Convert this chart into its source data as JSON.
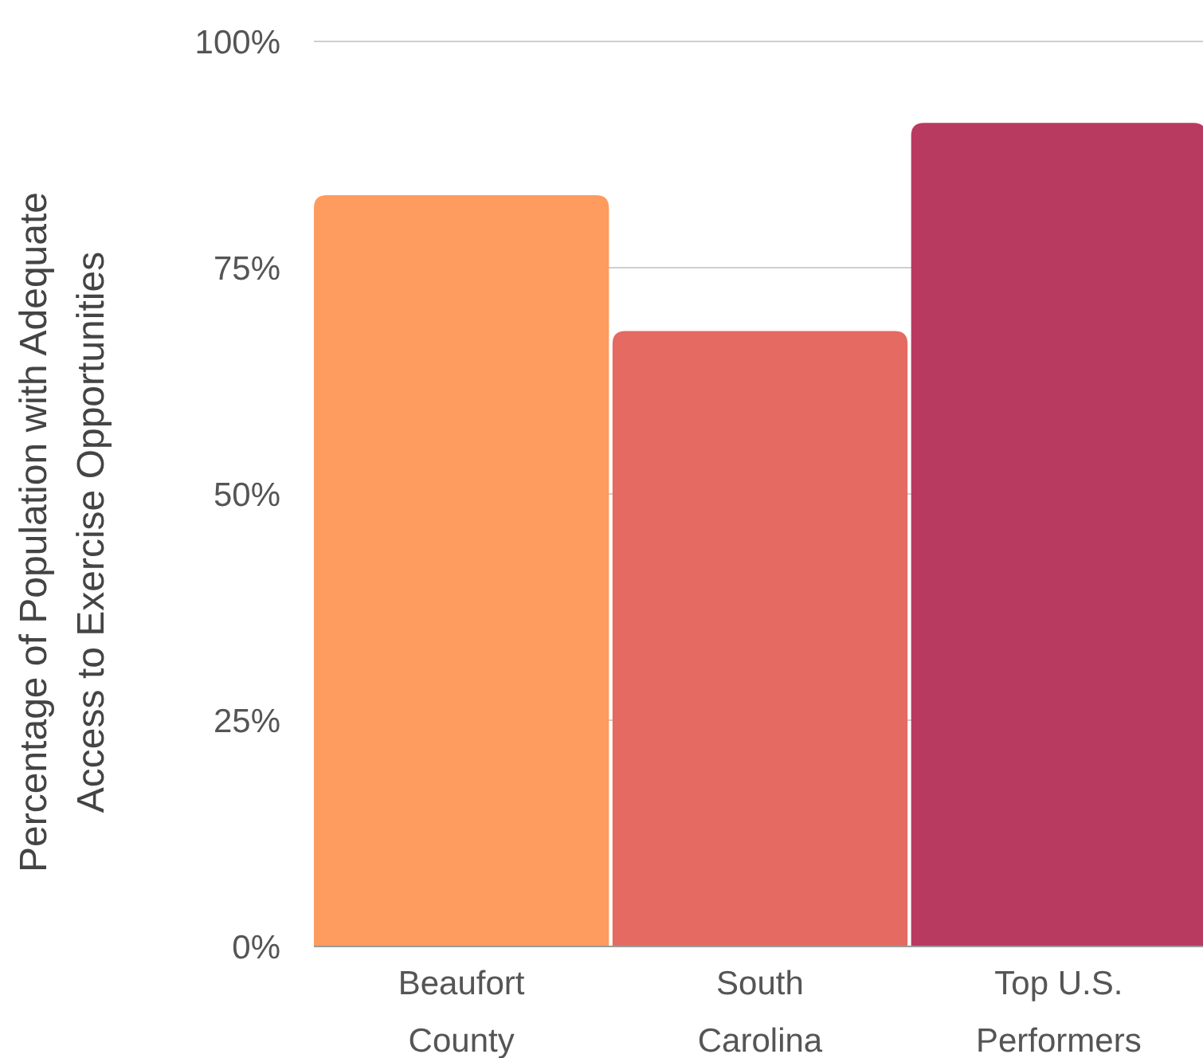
{
  "chart_data": {
    "type": "bar",
    "ylabel": "Percentage of Population with Adequate Access to Exercise Opportunities",
    "categories": [
      "Beaufort County",
      "South Carolina",
      "Top U.S. Performers"
    ],
    "values": [
      83,
      68,
      91
    ],
    "colors": [
      "#fe9b5f",
      "#e46a62",
      "#b93a60"
    ],
    "ylim": [
      0,
      100
    ],
    "yticks": [
      {
        "value": 0,
        "label": "0%"
      },
      {
        "value": 25,
        "label": "25%"
      },
      {
        "value": 50,
        "label": "50%"
      },
      {
        "value": 75,
        "label": "75%"
      },
      {
        "value": 100,
        "label": "100%"
      }
    ],
    "grid": "y"
  }
}
